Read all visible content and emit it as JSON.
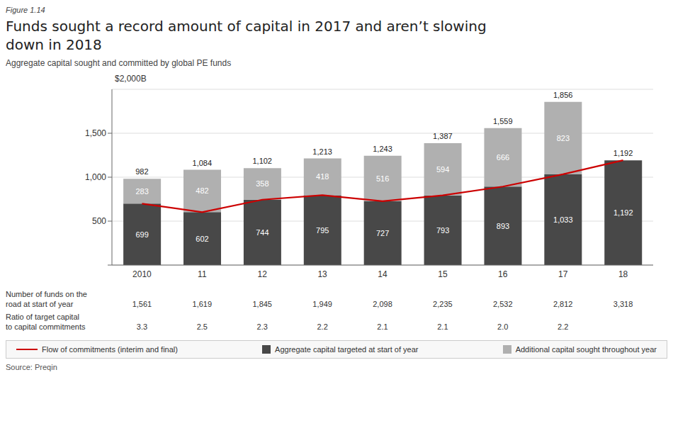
{
  "chart_data": {
    "type": "bar",
    "stacked": true,
    "data_labels": true,
    "grid": true,
    "legend": "bottom",
    "figure_label": "Figure 1.14",
    "title": "Funds sought a record amount of capital in 2017 and aren’t slowing\ndown in 2018",
    "subtitle": "Aggregate capital sought and committed by global PE funds",
    "ylabel": "$2,000B",
    "source": "Source: Preqin",
    "categories": [
      "2010",
      "11",
      "12",
      "13",
      "14",
      "15",
      "16",
      "17",
      "18"
    ],
    "series": [
      {
        "name": "Flow of commitments (interim and final)",
        "type": "line",
        "color": "#cc0000",
        "values": [
          699,
          602,
          744,
          795,
          727,
          793,
          893,
          1033,
          1192
        ]
      },
      {
        "name": "Aggregate capital targeted at start of year",
        "type": "bar",
        "color": "#484848",
        "values": [
          699,
          602,
          744,
          795,
          727,
          793,
          893,
          1033,
          1192
        ]
      },
      {
        "name": "Additional capital sought throughout year",
        "type": "bar",
        "color": "#b0b0b0",
        "values": [
          283,
          482,
          358,
          418,
          516,
          594,
          666,
          823,
          0
        ]
      }
    ],
    "totals": [
      982,
      1084,
      1102,
      1213,
      1243,
      1387,
      1559,
      1856,
      1192
    ],
    "ylim": [
      0,
      2000
    ],
    "yticks": [
      {
        "value": 0,
        "label": null
      },
      500,
      {
        "value": 1000,
        "label": "1,000"
      },
      {
        "value": 1500,
        "label": "1,500"
      }
    ],
    "table": [
      {
        "label": "Number of funds on the\nroad at start of year",
        "values": [
          1561,
          1619,
          1845,
          1949,
          2098,
          2235,
          2532,
          2812,
          3318
        ],
        "value_labels": [
          "1,561",
          "1,619",
          "1,845",
          "1,949",
          "2,098",
          "2,235",
          "2,532",
          "2,812",
          "3,318"
        ]
      },
      {
        "label": "Ratio of target capital\nto capital commitments",
        "values": [
          3.3,
          2.5,
          2.3,
          2.2,
          2.1,
          2.1,
          2.0,
          2.2,
          null
        ],
        "value_labels": [
          "3.3",
          "2.5",
          "2.3",
          "2.2",
          "2.1",
          "2.1",
          "2.0",
          "2.2",
          null
        ]
      }
    ]
  }
}
